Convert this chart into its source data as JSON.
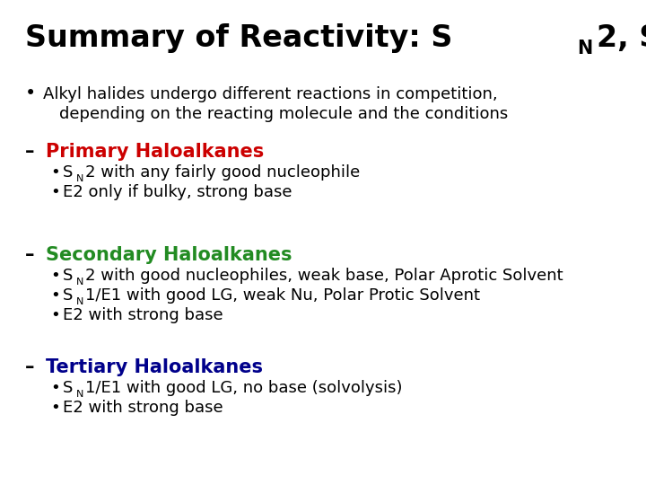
{
  "bg_color": "#ffffff",
  "title_color": "#000000",
  "black": "#000000",
  "primary_color": "#cc0000",
  "secondary_color": "#228b22",
  "tertiary_color": "#00008b",
  "title_fontsize": 24,
  "header_fontsize": 15,
  "body_fontsize": 13,
  "bullet_main_fontsize": 13,
  "sections": [
    {
      "header": "Primary Haloalkanes",
      "header_color": "#cc0000",
      "bullets": [
        [
          {
            "t": "S",
            "sub": "N"
          },
          {
            "t": "2 with any fairly good nucleophile"
          }
        ],
        [
          {
            "t": "E2 only if bulky, strong base"
          }
        ]
      ]
    },
    {
      "header": "Secondary Haloalkanes",
      "header_color": "#228b22",
      "bullets": [
        [
          {
            "t": "S",
            "sub": "N"
          },
          {
            "t": "2 with good nucleophiles, weak base, Polar Aprotic Solvent"
          }
        ],
        [
          {
            "t": "S",
            "sub": "N"
          },
          {
            "t": "1/E1 with good LG, weak Nu, Polar Protic Solvent"
          }
        ],
        [
          {
            "t": "E2 with strong base"
          }
        ]
      ]
    },
    {
      "header": "Tertiary Haloalkanes",
      "header_color": "#00008b",
      "bullets": [
        [
          {
            "t": "S",
            "sub": "N"
          },
          {
            "t": "1/E1 with good LG, no base (solvolysis)"
          }
        ],
        [
          {
            "t": "E2 with strong base"
          }
        ]
      ]
    }
  ]
}
